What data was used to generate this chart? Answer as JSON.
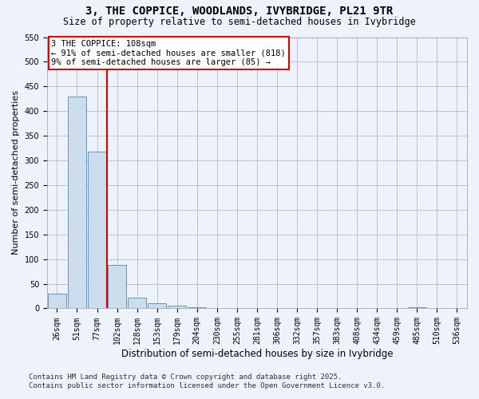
{
  "title": "3, THE COPPICE, WOODLANDS, IVYBRIDGE, PL21 9TR",
  "subtitle": "Size of property relative to semi-detached houses in Ivybridge",
  "xlabel": "Distribution of semi-detached houses by size in Ivybridge",
  "ylabel": "Number of semi-detached properties",
  "bin_labels": [
    "26sqm",
    "51sqm",
    "77sqm",
    "102sqm",
    "128sqm",
    "153sqm",
    "179sqm",
    "204sqm",
    "230sqm",
    "255sqm",
    "281sqm",
    "306sqm",
    "332sqm",
    "357sqm",
    "383sqm",
    "408sqm",
    "434sqm",
    "459sqm",
    "485sqm",
    "510sqm",
    "536sqm"
  ],
  "bar_values": [
    30,
    430,
    318,
    88,
    22,
    10,
    5,
    3,
    1,
    0,
    0,
    0,
    0,
    0,
    0,
    0,
    0,
    0,
    2,
    0,
    0
  ],
  "bar_color": "#ccdded",
  "bar_edge_color": "#5588aa",
  "vline_x": 2.5,
  "annotation_title": "3 THE COPPICE: 108sqm",
  "annotation_line1": "← 91% of semi-detached houses are smaller (818)",
  "annotation_line2": "9% of semi-detached houses are larger (85) →",
  "annotation_box_color": "#cc0000",
  "ylim": [
    0,
    550
  ],
  "yticks": [
    0,
    50,
    100,
    150,
    200,
    250,
    300,
    350,
    400,
    450,
    500,
    550
  ],
  "footnote1": "Contains HM Land Registry data © Crown copyright and database right 2025.",
  "footnote2": "Contains public sector information licensed under the Open Government Licence v3.0.",
  "background_color": "#eef2fa",
  "grid_color": "#b0bcd8",
  "title_fontsize": 10,
  "subtitle_fontsize": 8.5,
  "ylabel_fontsize": 8,
  "xlabel_fontsize": 8.5,
  "tick_fontsize": 7,
  "annot_fontsize": 7.5,
  "footnote_fontsize": 6.5
}
